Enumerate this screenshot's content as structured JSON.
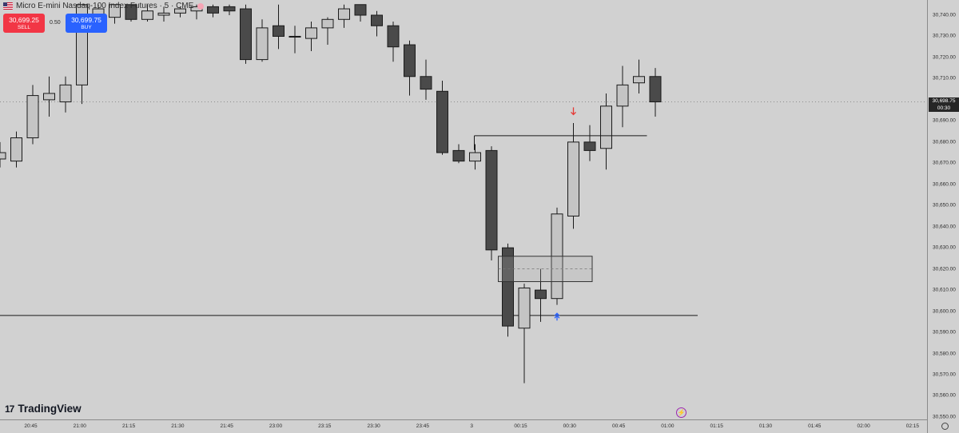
{
  "header": {
    "title": "Micro E-mini Nasdaq-100 Index Futures · 5 · CME",
    "flag_icon": "us-flag-icon",
    "status_icon": "market-status-icon"
  },
  "trade": {
    "sell_price": "30,699.25",
    "sell_label": "SELL",
    "spread": "0.50",
    "buy_price": "30,699.75",
    "buy_label": "BUY"
  },
  "last_price": {
    "value": "30,698.75",
    "countdown": "00:30"
  },
  "logo": {
    "mark": "17",
    "text": "TradingView"
  },
  "colors": {
    "bull": "#c4c4c4",
    "bear": "#4a4a4a",
    "background": "#d1d1d1",
    "sell": "#f23645",
    "buy": "#2962ff",
    "down_arrow": "#e53935",
    "up_arrow": "#2962ff"
  },
  "chart_data": {
    "type": "candlestick",
    "symbol": "Micro E-mini Nasdaq-100 Index Futures",
    "interval": "5",
    "exchange": "CME",
    "ylim": [
      30547,
      30745
    ],
    "y_ticks": [
      "30,740.00",
      "30,730.00",
      "30,720.00",
      "30,710.00",
      "30,700.00",
      "30,690.00",
      "30,680.00",
      "30,670.00",
      "30,660.00",
      "30,650.00",
      "30,640.00",
      "30,630.00",
      "30,620.00",
      "30,610.00",
      "30,600.00",
      "30,590.00",
      "30,580.00",
      "30,570.00",
      "30,560.00",
      "30,550.00"
    ],
    "x_ticks": [
      "20:45",
      "21:00",
      "21:15",
      "21:30",
      "21:45",
      "23:00",
      "23:15",
      "23:30",
      "23:45",
      "3",
      "00:15",
      "00:30",
      "00:45",
      "01:00",
      "01:15",
      "01:30",
      "01:45",
      "02:00",
      "02:15"
    ],
    "candles": [
      {
        "o": 30672,
        "h": 30680,
        "l": 30668,
        "c": 30675
      },
      {
        "o": 30671,
        "h": 30685,
        "l": 30668,
        "c": 30682
      },
      {
        "o": 30682,
        "h": 30707,
        "l": 30679,
        "c": 30702
      },
      {
        "o": 30700,
        "h": 30711,
        "l": 30692,
        "c": 30703
      },
      {
        "o": 30699,
        "h": 30711,
        "l": 30694,
        "c": 30707
      },
      {
        "o": 30707,
        "h": 30745,
        "l": 30698,
        "c": 30745
      },
      {
        "o": 30737,
        "h": 30745,
        "l": 30733,
        "c": 30743
      },
      {
        "o": 30739,
        "h": 30745,
        "l": 30736,
        "c": 30745
      },
      {
        "o": 30745,
        "h": 30745,
        "l": 30737,
        "c": 30738
      },
      {
        "o": 30738,
        "h": 30745,
        "l": 30737,
        "c": 30742
      },
      {
        "o": 30740,
        "h": 30744,
        "l": 30737,
        "c": 30741
      },
      {
        "o": 30741,
        "h": 30744,
        "l": 30739,
        "c": 30743
      },
      {
        "o": 30742,
        "h": 30745,
        "l": 30738,
        "c": 30744
      },
      {
        "o": 30744,
        "h": 30745,
        "l": 30739,
        "c": 30741
      },
      {
        "o": 30744,
        "h": 30745,
        "l": 30740,
        "c": 30742
      },
      {
        "o": 30743,
        "h": 30745,
        "l": 30717,
        "c": 30719
      },
      {
        "o": 30719,
        "h": 30738,
        "l": 30718,
        "c": 30734
      },
      {
        "o": 30735,
        "h": 30745,
        "l": 30724,
        "c": 30730
      },
      {
        "o": 30730,
        "h": 30735,
        "l": 30722,
        "c": 30730
      },
      {
        "o": 30729,
        "h": 30737,
        "l": 30723,
        "c": 30734
      },
      {
        "o": 30734,
        "h": 30739,
        "l": 30726,
        "c": 30738
      },
      {
        "o": 30738,
        "h": 30745,
        "l": 30734,
        "c": 30743
      },
      {
        "o": 30745,
        "h": 30745,
        "l": 30737,
        "c": 30740
      },
      {
        "o": 30740,
        "h": 30742,
        "l": 30730,
        "c": 30735
      },
      {
        "o": 30735,
        "h": 30737,
        "l": 30718,
        "c": 30725
      },
      {
        "o": 30726,
        "h": 30728,
        "l": 30702,
        "c": 30711
      },
      {
        "o": 30711,
        "h": 30719,
        "l": 30700,
        "c": 30705
      },
      {
        "o": 30704,
        "h": 30709,
        "l": 30674,
        "c": 30675
      },
      {
        "o": 30676,
        "h": 30679,
        "l": 30670,
        "c": 30671
      },
      {
        "o": 30671,
        "h": 30679,
        "l": 30667,
        "c": 30675
      },
      {
        "o": 30676,
        "h": 30678,
        "l": 30624,
        "c": 30629
      },
      {
        "o": 30630,
        "h": 30632,
        "l": 30588,
        "c": 30593
      },
      {
        "o": 30592,
        "h": 30613,
        "l": 30566,
        "c": 30611
      },
      {
        "o": 30610,
        "h": 30620,
        "l": 30595,
        "c": 30606
      },
      {
        "o": 30606,
        "h": 30649,
        "l": 30603,
        "c": 30646
      },
      {
        "o": 30645,
        "h": 30689,
        "l": 30639,
        "c": 30680
      },
      {
        "o": 30680,
        "h": 30688,
        "l": 30671,
        "c": 30676
      },
      {
        "o": 30677,
        "h": 30703,
        "l": 30667,
        "c": 30697
      },
      {
        "o": 30697,
        "h": 30716,
        "l": 30687,
        "c": 30707
      },
      {
        "o": 30708,
        "h": 30719,
        "l": 30703,
        "c": 30711
      },
      {
        "o": 30711,
        "h": 30715,
        "l": 30692,
        "c": 30699
      }
    ],
    "horizontal_lines": [
      {
        "price": 30598,
        "style": "solid"
      },
      {
        "price": 30699,
        "style": "dotted"
      }
    ],
    "level_line": {
      "price": 30683,
      "from_candle": 29,
      "to_candle": 39
    },
    "zone": {
      "top": 30626,
      "bottom": 30614,
      "from_candle": 31,
      "to_candle": 36
    },
    "markers": [
      {
        "type": "arrow-down",
        "candle": 35,
        "price": 30693
      },
      {
        "type": "arrow-up",
        "candle": 34,
        "price": 30599
      }
    ]
  }
}
